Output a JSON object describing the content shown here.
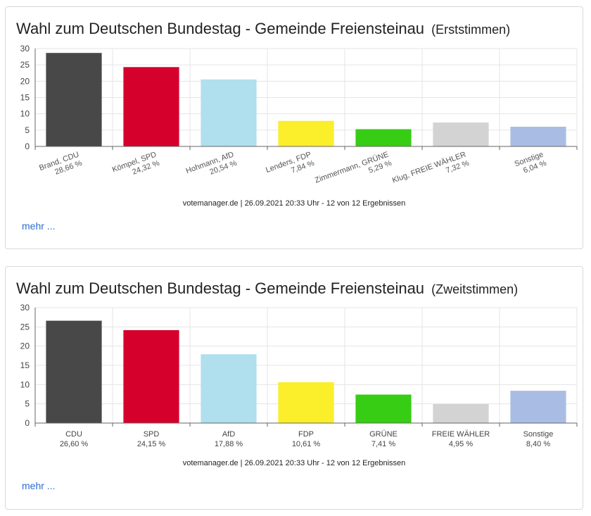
{
  "colors": {
    "CDU": "#484848",
    "SPD": "#d5002c",
    "AfD": "#b0dfee",
    "FDP": "#fbee2b",
    "GRUENE": "#36cd14",
    "FREIE_WAEHLER": "#d3d3d3",
    "Sonstige": "#a9bde4",
    "grid": "#e5e5e5",
    "axis": "#666666",
    "link": "#2a6dd6"
  },
  "cards": [
    {
      "title": "Wahl zum Deutschen Bundestag - Gemeinde Freiensteinau",
      "subtitle": "(Erststimmen)",
      "source": "votemanager.de | 26.09.2021 20:33 Uhr - 12 von 12 Ergebnissen",
      "more_link": "mehr ..."
    },
    {
      "title": "Wahl zum Deutschen Bundestag - Gemeinde Freiensteinau",
      "subtitle": "(Zweitstimmen)",
      "source": "votemanager.de | 26.09.2021 20:33 Uhr - 12 von 12 Ergebnissen",
      "more_link": "mehr ..."
    }
  ],
  "chart_data": [
    {
      "type": "bar",
      "categories": [
        "Brand, CDU",
        "Kömpel, SPD",
        "Hohmann, AfD",
        "Lenders, FDP",
        "Zimmermann, GRÜNE",
        "Klug, FREIE WÄHLER",
        "Sonstige"
      ],
      "values": [
        28.66,
        24.32,
        20.54,
        7.84,
        5.29,
        7.32,
        6.04
      ],
      "value_labels": [
        "28,66 %",
        "24,32 %",
        "20,54 %",
        "7,84 %",
        "5,29 %",
        "7,32 %",
        "6,04 %"
      ],
      "bar_colors": [
        "#484848",
        "#d5002c",
        "#b0dfee",
        "#fbee2b",
        "#36cd14",
        "#d3d3d3",
        "#a9bde4"
      ],
      "yticks": [
        "0",
        "5",
        "10",
        "15",
        "20",
        "25",
        "30"
      ],
      "ylim": [
        0,
        30
      ],
      "label_rotation": "slanted",
      "grid": true
    },
    {
      "type": "bar",
      "categories": [
        "CDU",
        "SPD",
        "AfD",
        "FDP",
        "GRÜNE",
        "FREIE WÄHLER",
        "Sonstige"
      ],
      "values": [
        26.6,
        24.15,
        17.88,
        10.61,
        7.41,
        4.95,
        8.4
      ],
      "value_labels": [
        "26,60 %",
        "24,15 %",
        "17,88 %",
        "10,61 %",
        "7,41 %",
        "4,95 %",
        "8,40 %"
      ],
      "bar_colors": [
        "#484848",
        "#d5002c",
        "#b0dfee",
        "#fbee2b",
        "#36cd14",
        "#d3d3d3",
        "#a9bde4"
      ],
      "yticks": [
        "0",
        "5",
        "10",
        "15",
        "20",
        "25",
        "30"
      ],
      "ylim": [
        0,
        30
      ],
      "label_rotation": "horizontal",
      "grid": true
    }
  ]
}
